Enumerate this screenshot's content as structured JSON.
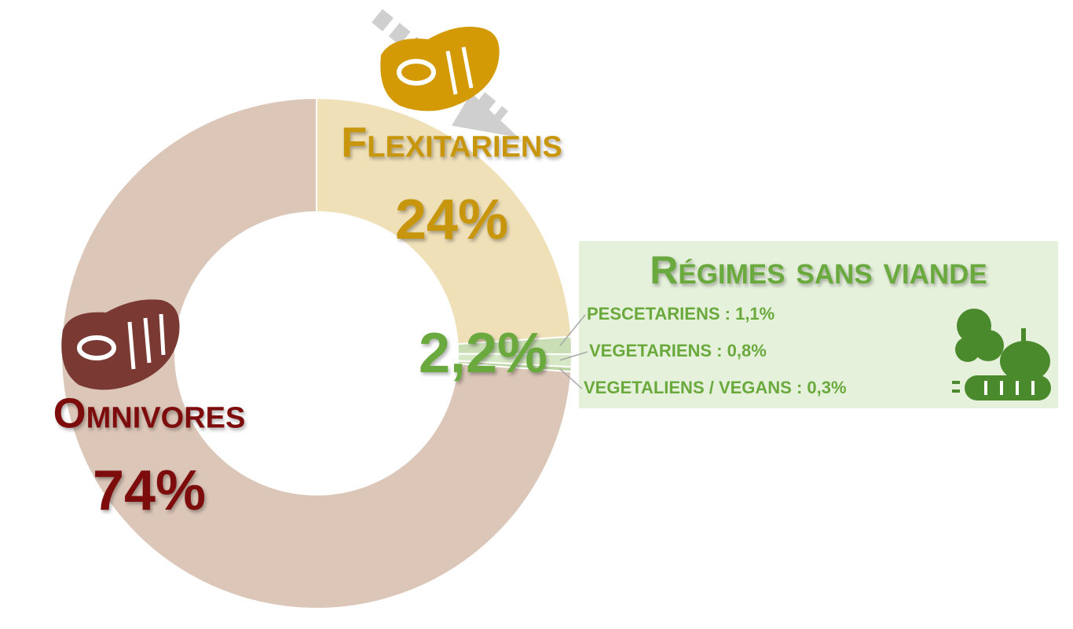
{
  "chart_data": {
    "type": "donut",
    "categories": [
      "Omnivores",
      "Flexitariens",
      "PESCETARIENS",
      "VEGETARIENS",
      "VEGETALIENS / VEGANS"
    ],
    "values": [
      74,
      24,
      1.1,
      0.8,
      0.3
    ],
    "value_labels": [
      "74%",
      "24%",
      "1,1%",
      "0,8%",
      "0,3%"
    ],
    "colors": [
      "#dbc6b8",
      "#efe0b8",
      "#c9deb4",
      "#d7e8c6",
      "#bcd6a2"
    ],
    "label_colors": [
      "#7d0f0f",
      "#c8960c",
      "#6aa93c",
      "#6aa93c",
      "#6aa93c"
    ],
    "label_separator": " : ",
    "group_title": "Régimes sans viande",
    "group_label": "2,2%"
  }
}
